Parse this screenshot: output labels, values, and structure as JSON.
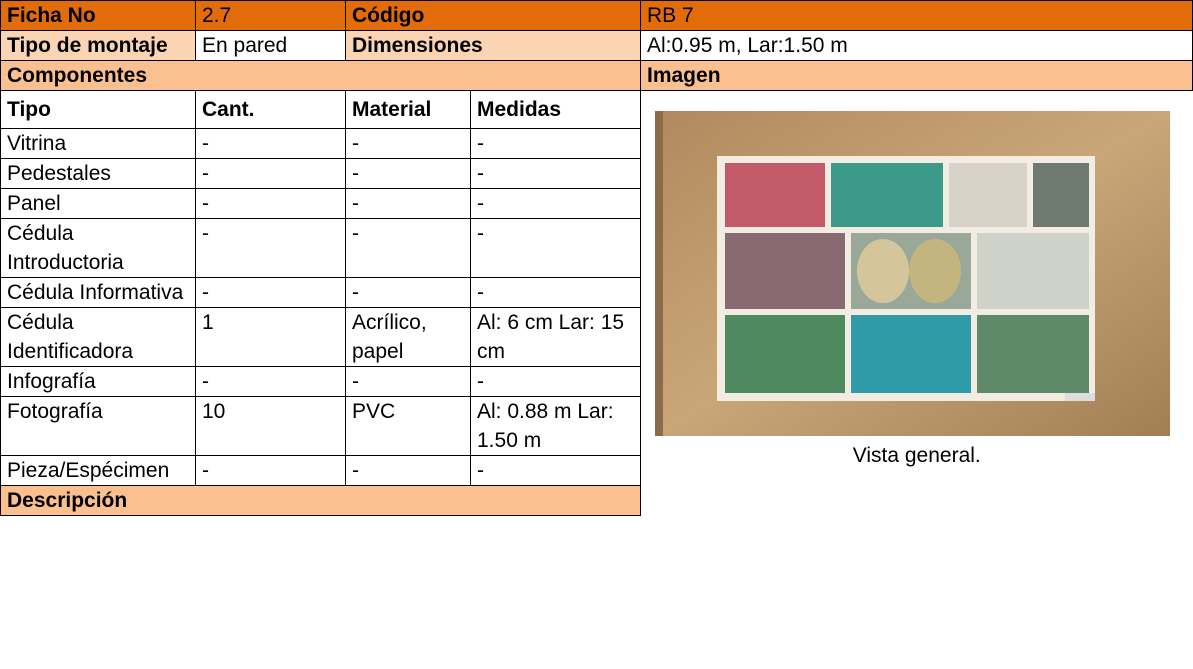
{
  "table": {
    "rows": [
      [
        "Ficha No",
        "2.7",
        "Código",
        "RB 7"
      ],
      [
        "Tipo de montaje",
        "En pared",
        "Dimensiones",
        "Al:0.95 m, Lar:1.50 m"
      ],
      [
        "Componentes",
        "Imagen"
      ],
      [
        "Tipo",
        "Cant.",
        "Material",
        "Medidas"
      ],
      [
        "Vitrina",
        "-",
        "-",
        "-"
      ],
      [
        "Pedestales",
        "-",
        "-",
        "-"
      ],
      [
        "Panel",
        "-",
        "-",
        "-"
      ],
      [
        "Cédula Introductoria",
        "-",
        "-",
        "-"
      ],
      [
        "Cédula Informativa",
        "-",
        "-",
        "-"
      ],
      [
        "Cédula Identificadora",
        "1",
        "Acrílico, papel",
        "Al: 6 cm Lar: 15 cm"
      ],
      [
        "Infografía",
        "-",
        "-",
        "-"
      ],
      [
        "Fotografía",
        "10",
        "PVC",
        "Al: 0.88 m Lar: 1.50 m"
      ],
      [
        "Pieza/Espécimen",
        "-",
        "-",
        "-"
      ],
      [
        "Descripción"
      ]
    ]
  },
  "image": {
    "caption": "Vista general."
  }
}
